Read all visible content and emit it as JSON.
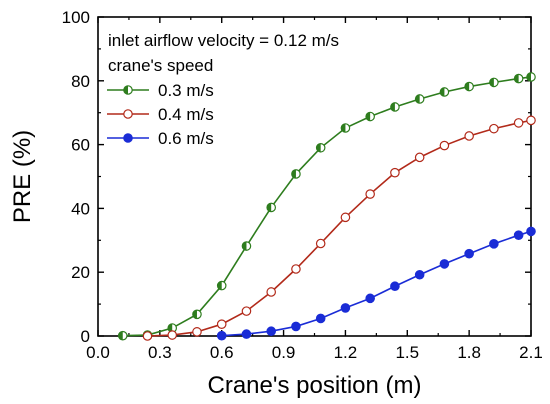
{
  "chart_data": {
    "type": "line",
    "xlabel": "Crane's position (m)",
    "ylabel": "PRE (%)",
    "xlim": [
      0.0,
      2.1
    ],
    "ylim": [
      0,
      100
    ],
    "xticks": [
      "0.0",
      "0.3",
      "0.6",
      "0.9",
      "1.2",
      "1.5",
      "1.8",
      "2.1"
    ],
    "yticks": [
      "0",
      "20",
      "40",
      "60",
      "80",
      "100"
    ],
    "legend": {
      "position": "top-left",
      "title_lines": [
        "inlet airflow velocity = 0.12 m/s",
        "crane's speed"
      ]
    },
    "series": [
      {
        "name": "0.3 m/s",
        "color": "#2e7d1e",
        "marker": "half-filled-circle",
        "x": [
          0.12,
          0.24,
          0.36,
          0.48,
          0.6,
          0.72,
          0.84,
          0.96,
          1.08,
          1.2,
          1.32,
          1.44,
          1.56,
          1.68,
          1.8,
          1.92,
          2.04,
          2.1
        ],
        "y": [
          0.1,
          0.3,
          2.5,
          6.8,
          15.8,
          28.2,
          40.3,
          50.8,
          59.0,
          65.2,
          68.8,
          71.8,
          74.3,
          76.5,
          78.2,
          79.5,
          80.7,
          81.2
        ]
      },
      {
        "name": "0.4 m/s",
        "color": "#b22a1a",
        "marker": "open-circle",
        "x": [
          0.24,
          0.36,
          0.48,
          0.6,
          0.72,
          0.84,
          0.96,
          1.08,
          1.2,
          1.32,
          1.44,
          1.56,
          1.68,
          1.8,
          1.92,
          2.04,
          2.1
        ],
        "y": [
          0.0,
          0.3,
          1.3,
          3.7,
          7.8,
          13.8,
          21.0,
          29.0,
          37.2,
          44.5,
          51.2,
          56.0,
          59.7,
          62.7,
          65.0,
          66.8,
          67.6
        ]
      },
      {
        "name": "0.6 m/s",
        "color": "#1a2cd6",
        "marker": "filled-circle",
        "x": [
          0.6,
          0.72,
          0.84,
          0.96,
          1.08,
          1.2,
          1.32,
          1.44,
          1.56,
          1.68,
          1.8,
          1.92,
          2.04,
          2.1
        ],
        "y": [
          0.1,
          0.6,
          1.5,
          3.0,
          5.5,
          8.8,
          11.8,
          15.6,
          19.2,
          22.6,
          25.8,
          28.9,
          31.6,
          32.8
        ]
      }
    ]
  }
}
